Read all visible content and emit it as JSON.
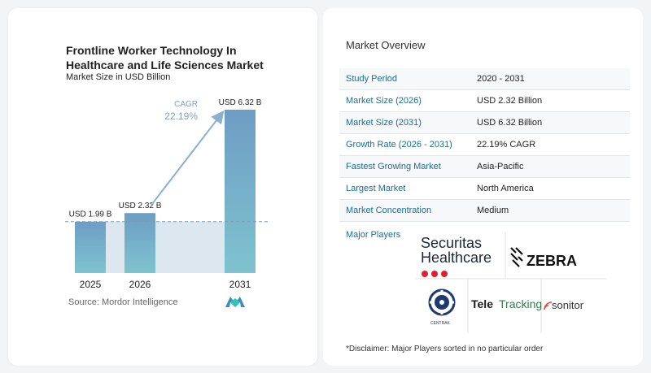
{
  "chart_data": {
    "type": "bar",
    "title": "Frontline Worker Technology In Healthcare and Life Sciences Market",
    "subtitle": "Market Size in USD Billion",
    "categories": [
      "2025",
      "2026",
      "2031"
    ],
    "values": [
      1.99,
      2.32,
      6.32
    ],
    "data_labels": [
      "USD 1.99 B",
      "USD 2.32 B",
      "USD 6.32 B"
    ],
    "ylim": [
      0,
      6.32
    ],
    "cagr_label": "CAGR",
    "cagr_value": "22.19%",
    "baseline_value": 1.99,
    "colors": {
      "bar_top": "#6e9dc4",
      "bar_bottom": "#7fc3cf",
      "shade": "#dce7f0",
      "arrow": "#8bb0d0",
      "cagr": "#7ea2c2",
      "dash": "#7d9ab5"
    }
  },
  "source": "Source: Mordor Intelligence",
  "overview": {
    "title": "Market Overview",
    "rows": [
      {
        "label": "Study Period",
        "value": "2020 - 2031"
      },
      {
        "label": "Market Size (2026)",
        "value": "USD 2.32 Billion"
      },
      {
        "label": "Market Size (2031)",
        "value": "USD 6.32 Billion"
      },
      {
        "label": "Growth Rate (2026 - 2031)",
        "value": "22.19% CAGR"
      },
      {
        "label": "Fastest Growing Market",
        "value": "Asia-Pacific"
      },
      {
        "label": "Largest Market",
        "value": "North America"
      },
      {
        "label": "Market Concentration",
        "value": "Medium"
      }
    ]
  },
  "major_players": {
    "label": "Major Players",
    "logos": {
      "securitas_line1": "Securitas",
      "securitas_line2": "Healthcare",
      "zebra": "ZEBRA",
      "centrak": "CENTRAK",
      "teletracking_a": "Tele",
      "teletracking_b": "Tracking",
      "sonitor": "sonitor"
    }
  },
  "disclaimer": "*Disclaimer: Major Players sorted in no particular order"
}
